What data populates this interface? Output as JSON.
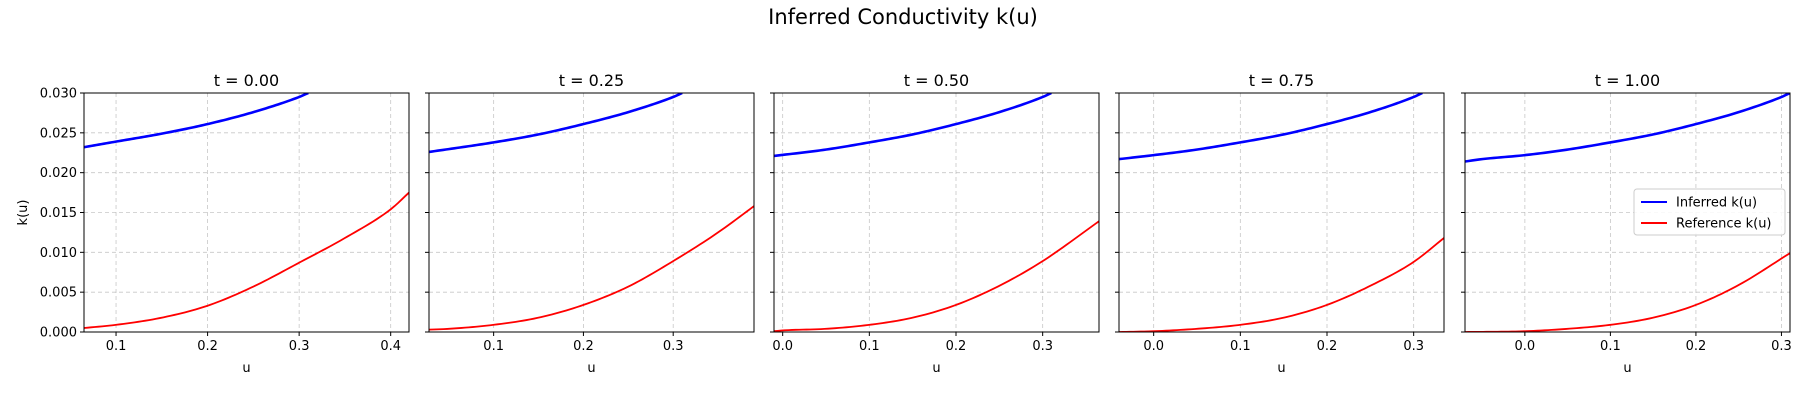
{
  "figure": {
    "title": "Inferred Conductivity k(u)",
    "colors": {
      "inferred": "#0000ff",
      "reference": "#ff0000",
      "grid": "#b0b0b0",
      "axes": "#000000"
    }
  },
  "legend": {
    "placement": "center-right",
    "entries": [
      "Inferred k(u)",
      "Reference k(u)"
    ]
  },
  "chart_data": [
    {
      "type": "line",
      "title": "t = 0.00",
      "xlabel": "u",
      "ylabel": "k(u)",
      "xlim": [
        0.065,
        0.42
      ],
      "ylim": [
        0.0,
        0.03
      ],
      "xticks": [
        0.1,
        0.2,
        0.3,
        0.4
      ],
      "xtick_labels": [
        "0.1",
        "0.2",
        "0.3",
        "0.4"
      ],
      "yticks": [
        0.0,
        0.005,
        0.01,
        0.015,
        0.02,
        0.025,
        0.03
      ],
      "ytick_labels": [
        "0.000",
        "0.005",
        "0.010",
        "0.015",
        "0.020",
        "0.025",
        "0.030"
      ],
      "grid": true,
      "series": [
        {
          "name": "Inferred k(u)",
          "x": [
            0.065,
            0.1,
            0.15,
            0.2,
            0.25,
            0.3,
            0.31
          ],
          "y": [
            0.0232,
            0.0239,
            0.0249,
            0.0261,
            0.0276,
            0.0295,
            0.03
          ]
        },
        {
          "name": "Reference k(u)",
          "x": [
            0.065,
            0.1,
            0.15,
            0.2,
            0.25,
            0.3,
            0.35,
            0.4,
            0.42
          ],
          "y": [
            0.0005,
            0.0009,
            0.0018,
            0.0033,
            0.0057,
            0.0087,
            0.0118,
            0.0154,
            0.0175
          ]
        }
      ]
    },
    {
      "type": "line",
      "title": "t = 0.25",
      "xlabel": "u",
      "ylabel": "",
      "xlim": [
        0.028,
        0.39
      ],
      "ylim": [
        0.0,
        0.03
      ],
      "xticks": [
        0.1,
        0.2,
        0.3
      ],
      "xtick_labels": [
        "0.1",
        "0.2",
        "0.3"
      ],
      "yticks": [
        0.0,
        0.005,
        0.01,
        0.015,
        0.02,
        0.025,
        0.03
      ],
      "ytick_labels": [],
      "grid": true,
      "series": [
        {
          "name": "Inferred k(u)",
          "x": [
            0.028,
            0.1,
            0.15,
            0.2,
            0.25,
            0.3,
            0.31
          ],
          "y": [
            0.0226,
            0.0238,
            0.0248,
            0.0261,
            0.0276,
            0.0295,
            0.03
          ]
        },
        {
          "name": "Reference k(u)",
          "x": [
            0.028,
            0.05,
            0.1,
            0.15,
            0.2,
            0.25,
            0.3,
            0.35,
            0.39
          ],
          "y": [
            0.0003,
            0.0004,
            0.0009,
            0.0018,
            0.0034,
            0.0057,
            0.0089,
            0.0125,
            0.0158
          ]
        }
      ]
    },
    {
      "type": "line",
      "title": "t = 0.50",
      "xlabel": "u",
      "ylabel": "",
      "xlim": [
        -0.01,
        0.365
      ],
      "ylim": [
        0.0,
        0.03
      ],
      "xticks": [
        0.0,
        0.1,
        0.2,
        0.3
      ],
      "xtick_labels": [
        "0.0",
        "0.1",
        "0.2",
        "0.3"
      ],
      "yticks": [
        0.0,
        0.005,
        0.01,
        0.015,
        0.02,
        0.025,
        0.03
      ],
      "ytick_labels": [],
      "grid": true,
      "series": [
        {
          "name": "Inferred k(u)",
          "x": [
            -0.01,
            0.05,
            0.1,
            0.15,
            0.2,
            0.25,
            0.3,
            0.31
          ],
          "y": [
            0.0221,
            0.0229,
            0.0238,
            0.0248,
            0.0261,
            0.0276,
            0.0295,
            0.03
          ]
        },
        {
          "name": "Reference k(u)",
          "x": [
            -0.01,
            0.0,
            0.05,
            0.1,
            0.15,
            0.2,
            0.25,
            0.3,
            0.365
          ],
          "y": [
            0.0001,
            0.0002,
            0.0004,
            0.0009,
            0.0018,
            0.0034,
            0.0058,
            0.0089,
            0.0139
          ]
        }
      ]
    },
    {
      "type": "line",
      "title": "t = 0.75",
      "xlabel": "u",
      "ylabel": "",
      "xlim": [
        -0.04,
        0.335
      ],
      "ylim": [
        0.0,
        0.03
      ],
      "xticks": [
        0.0,
        0.1,
        0.2,
        0.3
      ],
      "xtick_labels": [
        "0.0",
        "0.1",
        "0.2",
        "0.3"
      ],
      "yticks": [
        0.0,
        0.005,
        0.01,
        0.015,
        0.02,
        0.025,
        0.03
      ],
      "ytick_labels": [],
      "grid": true,
      "series": [
        {
          "name": "Inferred k(u)",
          "x": [
            -0.04,
            0.0,
            0.05,
            0.1,
            0.15,
            0.2,
            0.25,
            0.3,
            0.31
          ],
          "y": [
            0.0217,
            0.0222,
            0.0229,
            0.0238,
            0.0248,
            0.0261,
            0.0276,
            0.0295,
            0.03
          ]
        },
        {
          "name": "Reference k(u)",
          "x": [
            -0.04,
            0.0,
            0.05,
            0.1,
            0.15,
            0.2,
            0.25,
            0.3,
            0.335
          ],
          "y": [
            0.0,
            0.0001,
            0.0004,
            0.0009,
            0.0018,
            0.0034,
            0.0058,
            0.0088,
            0.0118
          ]
        }
      ]
    },
    {
      "type": "line",
      "title": "t = 1.00",
      "xlabel": "u",
      "ylabel": "",
      "xlim": [
        -0.07,
        0.31
      ],
      "ylim": [
        0.0,
        0.03
      ],
      "xticks": [
        0.0,
        0.1,
        0.2,
        0.3
      ],
      "xtick_labels": [
        "0.0",
        "0.1",
        "0.2",
        "0.3"
      ],
      "yticks": [
        0.0,
        0.005,
        0.01,
        0.015,
        0.02,
        0.025,
        0.03
      ],
      "ytick_labels": [],
      "grid": true,
      "series": [
        {
          "name": "Inferred k(u)",
          "x": [
            -0.07,
            -0.05,
            0.0,
            0.05,
            0.1,
            0.15,
            0.2,
            0.25,
            0.3,
            0.31
          ],
          "y": [
            0.0214,
            0.0217,
            0.0222,
            0.0229,
            0.0238,
            0.0248,
            0.0261,
            0.0276,
            0.0295,
            0.03
          ]
        },
        {
          "name": "Reference k(u)",
          "x": [
            -0.07,
            0.0,
            0.05,
            0.1,
            0.15,
            0.2,
            0.25,
            0.31
          ],
          "y": [
            0.0,
            0.0001,
            0.0004,
            0.0009,
            0.0018,
            0.0034,
            0.0059,
            0.0099
          ]
        }
      ]
    }
  ]
}
